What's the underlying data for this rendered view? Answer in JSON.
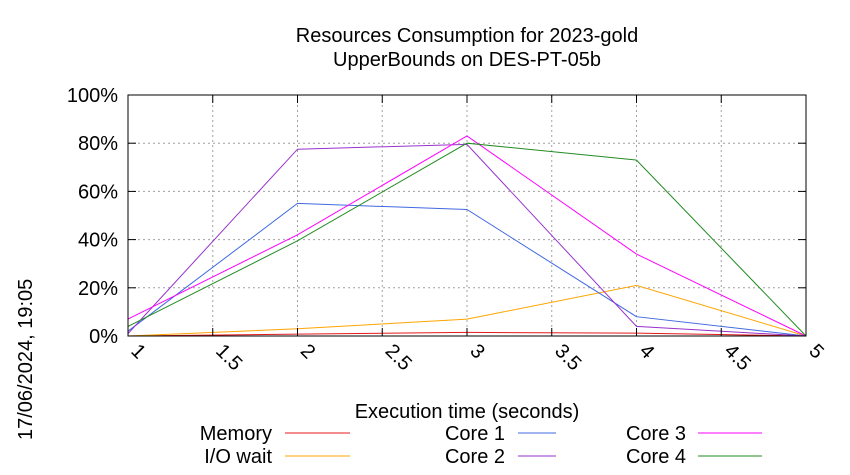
{
  "chart_data": {
    "type": "line",
    "title": [
      "Resources Consumption for 2023-gold",
      "UpperBounds on DES-PT-05b"
    ],
    "xlabel": "Execution time (seconds)",
    "ylabel": "",
    "xlim": [
      1,
      5
    ],
    "ylim": [
      0,
      100
    ],
    "xticks": [
      1,
      1.5,
      2,
      2.5,
      3,
      3.5,
      4,
      4.5,
      5
    ],
    "xtick_labels": [
      "1",
      "1.5",
      "2",
      "2.5",
      "3",
      "3.5",
      "4",
      "4.5",
      "5"
    ],
    "yticks": [
      0,
      20,
      40,
      60,
      80,
      100
    ],
    "ytick_labels": [
      "0%",
      "20%",
      "40%",
      "60%",
      "80%",
      "100%"
    ],
    "grid": true,
    "legend_position": "bottom",
    "timestamp": "17/06/2024, 19:05",
    "series": [
      {
        "name": "Memory",
        "color": "#e41a1c",
        "x": [
          1,
          2,
          3,
          4,
          5
        ],
        "values": [
          0,
          0.8,
          1.5,
          1.2,
          0
        ]
      },
      {
        "name": "I/O wait",
        "color": "#ffa500",
        "x": [
          1,
          2,
          3,
          4,
          5
        ],
        "values": [
          0,
          3,
          7,
          21,
          0
        ]
      },
      {
        "name": "Core 1",
        "color": "#4169e1",
        "x": [
          1,
          2,
          3,
          4,
          5
        ],
        "values": [
          2,
          55,
          52.5,
          8,
          0
        ]
      },
      {
        "name": "Core 2",
        "color": "#9932cc",
        "x": [
          1,
          2,
          3,
          4,
          5
        ],
        "values": [
          1,
          77.5,
          79.5,
          4,
          0
        ]
      },
      {
        "name": "Core 3",
        "color": "#ff00ff",
        "x": [
          1,
          2,
          3,
          4,
          5
        ],
        "values": [
          7,
          42,
          83,
          34,
          0
        ]
      },
      {
        "name": "Core 4",
        "color": "#228b22",
        "x": [
          1,
          2,
          3,
          4,
          5
        ],
        "values": [
          4,
          39.5,
          80,
          73,
          0
        ]
      }
    ]
  }
}
